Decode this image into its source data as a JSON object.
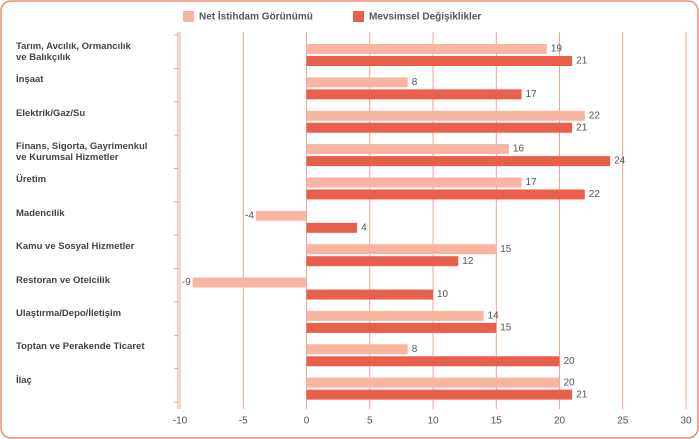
{
  "chart_data": {
    "type": "bar",
    "orientation": "horizontal",
    "categories": [
      "Tarım, Avcılık, Ormancılık\nve Balıkçılık",
      "İnşaat",
      "Elektrik/Gaz/Su",
      "Finans, Sigorta, Gayrimenkul\nve Kurumsal Hizmetler",
      "Üretim",
      "Madencilik",
      "Kamu ve Sosyal Hizmetler",
      "Restoran ve Otelcilik",
      "Ulaştırma/Depo/İletişim",
      "Toptan ve Perakende Ticaret",
      "İlaç"
    ],
    "series": [
      {
        "name": "Net İstihdam Görünümü",
        "color": "#f7b5a2",
        "values": [
          19,
          8,
          22,
          16,
          17,
          -4,
          15,
          -9,
          14,
          8,
          20
        ]
      },
      {
        "name": "Mevsimsel Değişiklikler",
        "color": "#e8604c",
        "values": [
          21,
          17,
          21,
          24,
          22,
          4,
          12,
          10,
          15,
          20,
          21
        ]
      }
    ],
    "xlim": [
      -10,
      30
    ],
    "xticks": [
      -10,
      -5,
      0,
      5,
      10,
      15,
      20,
      25,
      30
    ],
    "grid": true,
    "legend": "top"
  }
}
